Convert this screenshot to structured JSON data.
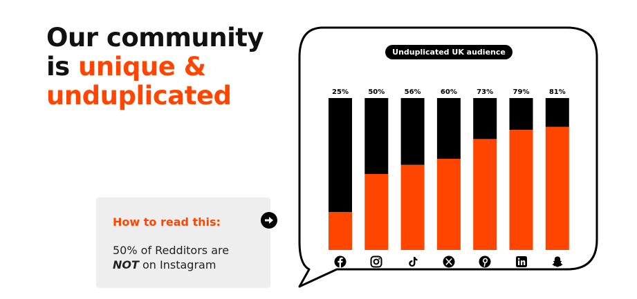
{
  "headline": {
    "line1": "Our community",
    "line2_prefix": "is ",
    "line2_accent": "unique &",
    "line3_accent": "unduplicated"
  },
  "info": {
    "title": "How to read this:",
    "body_line1": "50% of Redditors are",
    "body_em": "NOT",
    "body_rest": " on Instagram"
  },
  "colors": {
    "accent": "#ff4500",
    "dark": "#000000",
    "panel": "#eeeeee"
  },
  "chart_data": {
    "type": "bar",
    "stacked": true,
    "title": "Unduplicated UK audience",
    "categories": [
      "facebook",
      "instagram",
      "tiktok",
      "x",
      "pinterest",
      "linkedin",
      "snapchat"
    ],
    "value_labels": [
      "25%",
      "50%",
      "56%",
      "60%",
      "73%",
      "79%",
      "81%"
    ],
    "series": [
      {
        "values": [
          25,
          50,
          56,
          60,
          73,
          79,
          81
        ],
        "color": "#ff4500"
      },
      {
        "values": [
          75,
          50,
          44,
          40,
          27,
          21,
          19
        ],
        "color": "#000000"
      }
    ],
    "ylim": [
      0,
      100
    ],
    "grid": false,
    "legend": "none"
  },
  "icons": [
    "facebook-icon",
    "instagram-icon",
    "tiktok-icon",
    "x-icon",
    "pinterest-icon",
    "linkedin-icon",
    "snapchat-icon"
  ]
}
